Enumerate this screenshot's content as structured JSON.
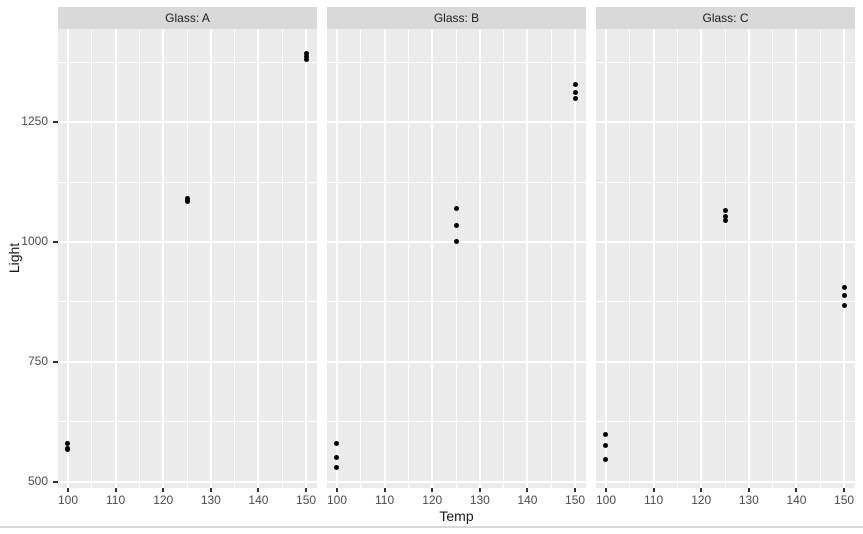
{
  "figure": {
    "background": "#ffffff"
  },
  "chart_data": {
    "type": "scatter",
    "title": "",
    "xlabel": "Temp",
    "ylabel": "Light",
    "facets": [
      {
        "label": "Glass: A",
        "points": [
          {
            "x": 100,
            "y": 580
          },
          {
            "x": 100,
            "y": 568
          },
          {
            "x": 100,
            "y": 570
          },
          {
            "x": 125,
            "y": 1090
          },
          {
            "x": 125,
            "y": 1087
          },
          {
            "x": 125,
            "y": 1085
          },
          {
            "x": 150,
            "y": 1392
          },
          {
            "x": 150,
            "y": 1380
          },
          {
            "x": 150,
            "y": 1386
          }
        ]
      },
      {
        "label": "Glass: B",
        "points": [
          {
            "x": 100,
            "y": 550
          },
          {
            "x": 100,
            "y": 530
          },
          {
            "x": 100,
            "y": 579
          },
          {
            "x": 125,
            "y": 1070
          },
          {
            "x": 125,
            "y": 1035
          },
          {
            "x": 125,
            "y": 1000
          },
          {
            "x": 150,
            "y": 1328
          },
          {
            "x": 150,
            "y": 1312
          },
          {
            "x": 150,
            "y": 1299
          }
        ]
      },
      {
        "label": "Glass: C",
        "points": [
          {
            "x": 100,
            "y": 546
          },
          {
            "x": 100,
            "y": 575
          },
          {
            "x": 100,
            "y": 599
          },
          {
            "x": 125,
            "y": 1045
          },
          {
            "x": 125,
            "y": 1053
          },
          {
            "x": 125,
            "y": 1066
          },
          {
            "x": 150,
            "y": 867
          },
          {
            "x": 150,
            "y": 904
          },
          {
            "x": 150,
            "y": 889
          }
        ]
      }
    ],
    "x_ticks": [
      100,
      110,
      120,
      130,
      140,
      150
    ],
    "x_minor_ticks": [
      105,
      115,
      125,
      135,
      145
    ],
    "y_ticks": [
      500,
      750,
      1000,
      1250
    ],
    "y_minor_ticks": [
      625,
      875,
      1125,
      1375
    ],
    "xlim": [
      97.9,
      152.3
    ],
    "ylim": [
      487,
      1444
    ],
    "grid": true,
    "legend": "none",
    "colors": {
      "point": "#000000",
      "panel_bg": "#ebebeb",
      "strip_bg": "#d9d9d9",
      "grid_major": "#ffffff",
      "grid_minor": "#ffffff",
      "axis_text": "#4d4d4d",
      "tick_mark": "#333333"
    }
  }
}
